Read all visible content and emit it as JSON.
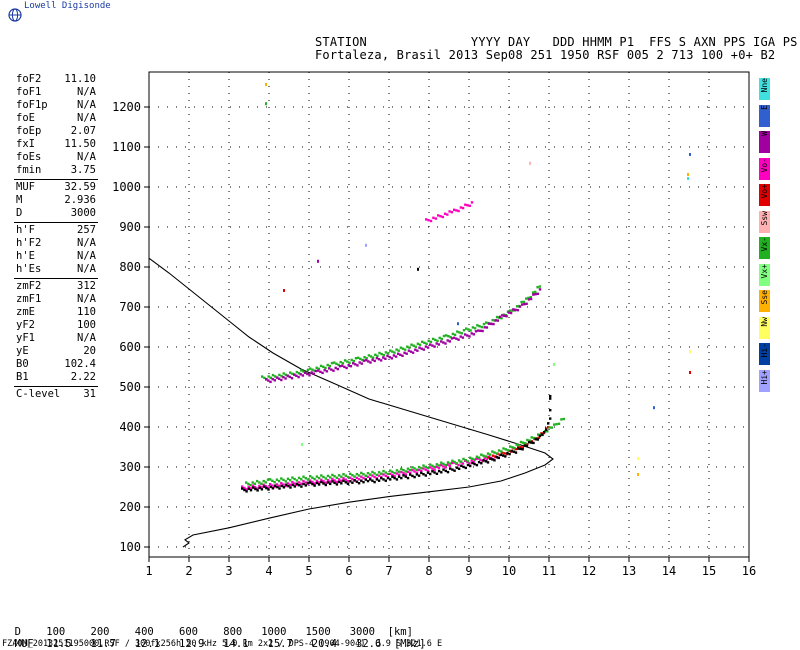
{
  "logo": {
    "text": "Lowell Digisonde",
    "icon": "globe-icon"
  },
  "header": {
    "line1": "STATION              YYYY DAY   DDD HHMM P1  FFS S AXN PPS IGA PS",
    "line2": "Fortaleza, Brasil 2013 Sep08 251 1950 RSF 005 2 713 100 +0+ B2"
  },
  "params": [
    {
      "name": "foF2",
      "value": "11.10"
    },
    {
      "name": "foF1",
      "value": "N/A"
    },
    {
      "name": "foF1p",
      "value": "N/A"
    },
    {
      "name": "foE",
      "value": "N/A"
    },
    {
      "name": "foEp",
      "value": "2.07"
    },
    {
      "name": "fxI",
      "value": "11.50"
    },
    {
      "name": "foEs",
      "value": "N/A"
    },
    {
      "name": "fmin",
      "value": "3.75"
    },
    {
      "name": "MUF",
      "value": "32.59"
    },
    {
      "name": "M",
      "value": "2.936"
    },
    {
      "name": "D",
      "value": "3000"
    },
    {
      "name": "h'F",
      "value": "257"
    },
    {
      "name": "h'F2",
      "value": "N/A"
    },
    {
      "name": "h'E",
      "value": "N/A"
    },
    {
      "name": "h'Es",
      "value": "N/A"
    },
    {
      "name": "zmF2",
      "value": "312"
    },
    {
      "name": "zmF1",
      "value": "N/A"
    },
    {
      "name": "zmE",
      "value": "110"
    },
    {
      "name": "yF2",
      "value": "100"
    },
    {
      "name": "yF1",
      "value": "N/A"
    },
    {
      "name": "yE",
      "value": "20"
    },
    {
      "name": "B0",
      "value": "102.4"
    },
    {
      "name": "B1",
      "value": "2.22"
    },
    {
      "name": "C-level",
      "value": "31"
    }
  ],
  "legend": [
    {
      "label": "Nne",
      "color": "#40e0e0"
    },
    {
      "label": "E",
      "color": "#3060d0"
    },
    {
      "label": "W",
      "color": "#a000a0"
    },
    {
      "label": "Vo-",
      "color": "#ff00c0"
    },
    {
      "label": "Vo+",
      "color": "#e00000"
    },
    {
      "label": "Ssw",
      "color": "#ffb0b0"
    },
    {
      "label": "Vx-",
      "color": "#20b020"
    },
    {
      "label": "Vx+",
      "color": "#80ff80"
    },
    {
      "label": "Sse",
      "color": "#ffb000"
    },
    {
      "label": "Nw",
      "color": "#ffff60"
    },
    {
      "label": "Hi-",
      "color": "#0040a0"
    },
    {
      "label": "Hi+",
      "color": "#a0a0ff"
    }
  ],
  "muf_table": {
    "d_label": "D",
    "d_values": [
      "100",
      "200",
      "400",
      "600",
      "800",
      "1000",
      "1500",
      "3000"
    ],
    "d_unit": "[km]",
    "muf_label": "MUF",
    "muf_values": [
      "11.5",
      "11.7",
      "12.1",
      "12.9",
      "14.1",
      "15.7",
      "20.4",
      "32.6"
    ],
    "muf_unit": "[MHz]"
  },
  "footer": "FZA0M_2013251195000.RSF / 300fx256h 50 kHz 5.0 km 2x2 / DPS-4 (904-904)  3.9 S 321.6 E",
  "chart_data": {
    "type": "scatter",
    "xlim": [
      1,
      16
    ],
    "ylim": [
      80,
      1300
    ],
    "x_ticks": [
      "1",
      "2",
      "3",
      "4",
      "5",
      "6",
      "7",
      "8",
      "9",
      "10",
      "11",
      "12",
      "13",
      "14",
      "15",
      "16"
    ],
    "y_ticks": [
      "100",
      "200",
      "300",
      "400",
      "500",
      "600",
      "700",
      "800",
      "900",
      "1000",
      "1100",
      "1200"
    ],
    "grid": true,
    "profile": [
      [
        1.85,
        100
      ],
      [
        2.0,
        110
      ],
      [
        1.9,
        118
      ],
      [
        2.1,
        130
      ],
      [
        3,
        148
      ],
      [
        4,
        172
      ],
      [
        5,
        195
      ],
      [
        6,
        212
      ],
      [
        7,
        226
      ],
      [
        8,
        238
      ],
      [
        9,
        250
      ],
      [
        9.8,
        265
      ],
      [
        10.4,
        285
      ],
      [
        10.9,
        305
      ],
      [
        11.1,
        320
      ],
      [
        10.9,
        335
      ],
      [
        10.3,
        355
      ],
      [
        9.5,
        380
      ],
      [
        8.5,
        410
      ],
      [
        7.5,
        440
      ],
      [
        6.5,
        470
      ],
      [
        5.6,
        510
      ],
      [
        4.8,
        545
      ],
      [
        4.1,
        585
      ],
      [
        3.5,
        625
      ],
      [
        3.0,
        665
      ],
      [
        2.5,
        705
      ],
      [
        2.0,
        745
      ],
      [
        1.5,
        785
      ],
      [
        1.0,
        822
      ]
    ],
    "traces": [
      {
        "name": "Vo-",
        "color": "#ff00c0",
        "points": [
          [
            3.3,
            250
          ],
          [
            4,
            256
          ],
          [
            5,
            265
          ],
          [
            6,
            272
          ],
          [
            7,
            282
          ],
          [
            8,
            298
          ],
          [
            8.6,
            310
          ],
          [
            9.2,
            320
          ],
          [
            9.8,
            330
          ]
        ]
      },
      {
        "name": "Vo+",
        "color": "#e00000",
        "points": [
          [
            9.4,
            325
          ],
          [
            9.8,
            335
          ],
          [
            10.2,
            350
          ],
          [
            10.6,
            370
          ],
          [
            10.9,
            395
          ],
          [
            11,
            410
          ]
        ]
      },
      {
        "name": "Vx-",
        "color": "#20b020",
        "points": [
          [
            3.4,
            260
          ],
          [
            4,
            268
          ],
          [
            5,
            276
          ],
          [
            6,
            282
          ],
          [
            7,
            290
          ],
          [
            8,
            305
          ],
          [
            9,
            322
          ],
          [
            10,
            350
          ],
          [
            10.7,
            380
          ],
          [
            11.1,
            405
          ],
          [
            11.4,
            430
          ]
        ]
      },
      {
        "name": "echo2-Vx",
        "color": "#20b020",
        "points": [
          [
            3.8,
            525
          ],
          [
            4.5,
            535
          ],
          [
            5,
            545
          ],
          [
            5.6,
            560
          ],
          [
            6.2,
            572
          ],
          [
            7,
            590
          ],
          [
            7.8,
            612
          ],
          [
            8.4,
            628
          ],
          [
            8.9,
            645
          ],
          [
            9.4,
            660
          ],
          [
            10,
            690
          ],
          [
            10.4,
            720
          ],
          [
            10.8,
            760
          ]
        ]
      },
      {
        "name": "echo2-W",
        "color": "#a000a0",
        "points": [
          [
            3.9,
            518
          ],
          [
            4.6,
            530
          ],
          [
            5.2,
            540
          ],
          [
            5.8,
            552
          ],
          [
            6.4,
            566
          ],
          [
            7.2,
            582
          ],
          [
            8,
            605
          ],
          [
            8.6,
            622
          ],
          [
            9.2,
            640
          ],
          [
            9.8,
            678
          ],
          [
            10.3,
            705
          ],
          [
            10.8,
            750
          ]
        ]
      },
      {
        "name": "echo3",
        "color": "#ff00c0",
        "points": [
          [
            7.9,
            918
          ],
          [
            8.2,
            928
          ],
          [
            8.6,
            942
          ],
          [
            9.1,
            965
          ]
        ]
      },
      {
        "name": "black-spur",
        "color": "#000000",
        "points": [
          [
            3.3,
            245
          ],
          [
            5,
            260
          ],
          [
            6.5,
            268
          ],
          [
            7.5,
            280
          ],
          [
            8.5,
            295
          ],
          [
            9.5,
            320
          ],
          [
            10.2,
            345
          ],
          [
            10.8,
            380
          ],
          [
            11.0,
            420
          ],
          [
            11.0,
            470
          ],
          [
            11.0,
            490
          ]
        ]
      }
    ],
    "sparse": [
      {
        "x": 3.9,
        "y": 1260,
        "c": "#ffb000"
      },
      {
        "x": 3.9,
        "y": 1212,
        "c": "#20b020"
      },
      {
        "x": 4.35,
        "y": 745,
        "c": "#e00000"
      },
      {
        "x": 5.2,
        "y": 818,
        "c": "#a000a0"
      },
      {
        "x": 6.4,
        "y": 858,
        "c": "#a0a0ff"
      },
      {
        "x": 7.7,
        "y": 798,
        "c": "#000000"
      },
      {
        "x": 10.5,
        "y": 1063,
        "c": "#ffb0b0"
      },
      {
        "x": 14.5,
        "y": 1085,
        "c": "#3060d0"
      },
      {
        "x": 14.45,
        "y": 1035,
        "c": "#ffb000"
      },
      {
        "x": 14.45,
        "y": 1025,
        "c": "#40e0e0"
      },
      {
        "x": 14.5,
        "y": 592,
        "c": "#ffff60"
      },
      {
        "x": 14.5,
        "y": 540,
        "c": "#e00000"
      },
      {
        "x": 13.6,
        "y": 452,
        "c": "#3060d0"
      },
      {
        "x": 13.2,
        "y": 325,
        "c": "#ffff60"
      },
      {
        "x": 13.2,
        "y": 285,
        "c": "#ffb000"
      },
      {
        "x": 11.1,
        "y": 560,
        "c": "#80ff80"
      },
      {
        "x": 4.8,
        "y": 360,
        "c": "#80ff80"
      },
      {
        "x": 8.7,
        "y": 662,
        "c": "#3060d0"
      }
    ]
  }
}
